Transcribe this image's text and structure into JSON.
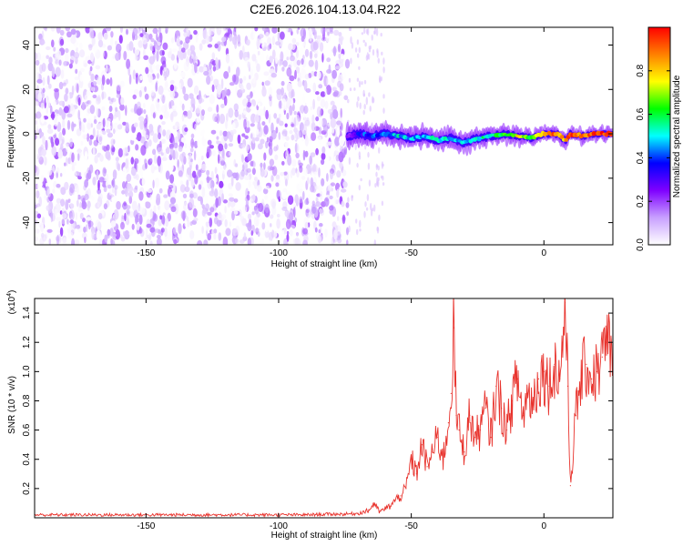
{
  "figure_title": "C2E6.2026.104.13.04.R22",
  "chart_data": [
    {
      "type": "heatmap",
      "title": "C2E6.2026.104.13.04.R22",
      "xlabel": "Height of straight line (km)",
      "ylabel": "Frequency (Hz)",
      "xlim": [
        -192,
        26
      ],
      "ylim": [
        -50,
        48
      ],
      "x_ticks": [
        -150,
        -100,
        -50,
        0
      ],
      "x_tick_labels": [
        "-150",
        "-100",
        "-50",
        "0"
      ],
      "y_ticks": [
        -40,
        -20,
        0,
        20,
        40
      ],
      "y_tick_labels": [
        "-40",
        "-20",
        "0",
        "20",
        "40"
      ],
      "colorbar": {
        "label": "Normalized spectral amplitude",
        "range": [
          0,
          1
        ],
        "ticks": [
          0,
          0.2,
          0.4,
          0.6,
          0.8
        ],
        "tick_labels": [
          "0.0",
          "0.2",
          "0.4",
          "0.6",
          "0.8"
        ],
        "colors": [
          "#ffffff",
          "#c8a0ff",
          "#7f00ff",
          "#0000ff",
          "#00ffff",
          "#00ff00",
          "#ffff00",
          "#ff8000",
          "#ff0000"
        ]
      },
      "noise_region": {
        "x_range": [
          -192,
          -74
        ],
        "freq_range": [
          -50,
          48
        ],
        "amplitude_range": [
          0.0,
          0.2
        ]
      },
      "signal_track": {
        "x": [
          -74,
          -70,
          -65,
          -60,
          -55,
          -50,
          -45,
          -40,
          -35,
          -30,
          -25,
          -20,
          -15,
          -10,
          -5,
          0,
          5,
          8,
          10,
          15,
          20,
          25
        ],
        "frequency": [
          -1,
          0,
          -1,
          0,
          -1,
          -2,
          -1,
          -3,
          -2,
          -4,
          -2,
          -1,
          0,
          -1,
          -2,
          0,
          0,
          -3,
          0,
          -1,
          0,
          0
        ],
        "amplitude": [
          0.25,
          0.35,
          0.4,
          0.45,
          0.5,
          0.45,
          0.5,
          0.55,
          0.45,
          0.5,
          0.5,
          0.55,
          0.6,
          0.75,
          0.65,
          0.85,
          0.9,
          0.8,
          0.95,
          0.85,
          0.95,
          0.95
        ]
      }
    },
    {
      "type": "line",
      "title": "",
      "xlabel": "Height of straight line (km)",
      "ylabel": "SNR (10 * v/v)",
      "y_multiplier_label": "(x10",
      "y_multiplier_exponent": "4",
      "xlim": [
        -192,
        26
      ],
      "ylim": [
        0,
        1.5
      ],
      "x_ticks": [
        -150,
        -100,
        -50,
        0
      ],
      "x_tick_labels": [
        "-150",
        "-100",
        "-50",
        "0"
      ],
      "y_ticks": [
        0.2,
        0.4,
        0.6,
        0.8,
        1.0,
        1.2,
        1.4
      ],
      "y_tick_labels": [
        "0.2",
        "0.4",
        "0.6",
        "0.8",
        "1.0",
        "1.2",
        "1.4"
      ],
      "series": [
        {
          "name": "SNR",
          "color": "#e8322c",
          "x": [
            -192,
            -180,
            -160,
            -140,
            -120,
            -100,
            -90,
            -80,
            -75,
            -70,
            -66,
            -64,
            -62,
            -60,
            -58,
            -56,
            -54,
            -52,
            -50,
            -48,
            -46,
            -44,
            -42,
            -40,
            -38,
            -36,
            -35,
            -34,
            -33,
            -32,
            -30,
            -28,
            -26,
            -24,
            -22,
            -20,
            -18,
            -16,
            -14,
            -12,
            -10,
            -8,
            -6,
            -4,
            -2,
            0,
            2,
            4,
            6,
            7,
            8,
            9,
            10,
            12,
            14,
            16,
            18,
            20,
            22,
            24,
            26
          ],
          "y": [
            0.02,
            0.02,
            0.02,
            0.02,
            0.02,
            0.02,
            0.02,
            0.025,
            0.025,
            0.03,
            0.05,
            0.1,
            0.04,
            0.06,
            0.08,
            0.12,
            0.15,
            0.2,
            0.4,
            0.3,
            0.5,
            0.35,
            0.45,
            0.55,
            0.4,
            0.65,
            0.85,
            1.3,
            0.7,
            0.6,
            0.45,
            0.7,
            0.55,
            0.6,
            0.75,
            0.55,
            0.9,
            0.75,
            0.6,
            0.8,
            0.95,
            0.7,
            0.85,
            0.8,
            0.95,
            1.0,
            0.9,
            1.05,
            0.95,
            1.2,
            1.47,
            0.9,
            0.22,
            0.7,
            0.95,
            1.05,
            0.95,
            1.0,
            1.1,
            1.2,
            1.12
          ]
        }
      ]
    }
  ]
}
